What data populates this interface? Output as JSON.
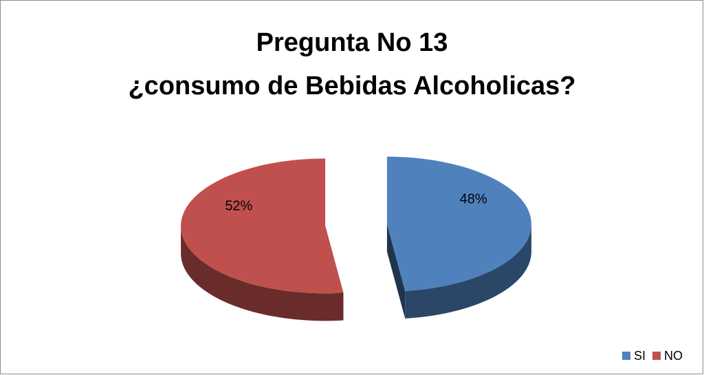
{
  "chart_data": {
    "type": "pie",
    "title": [
      "Pregunta No 13",
      "¿consumo de Bebidas Alcoholicas?"
    ],
    "categories": [
      "SI",
      "NO"
    ],
    "values": [
      48,
      52
    ],
    "value_labels": [
      "48%",
      "52%"
    ],
    "colors": [
      "#4f81bd",
      "#c0504d"
    ],
    "legend": "bottom-right",
    "exploded": true,
    "3d": true
  }
}
